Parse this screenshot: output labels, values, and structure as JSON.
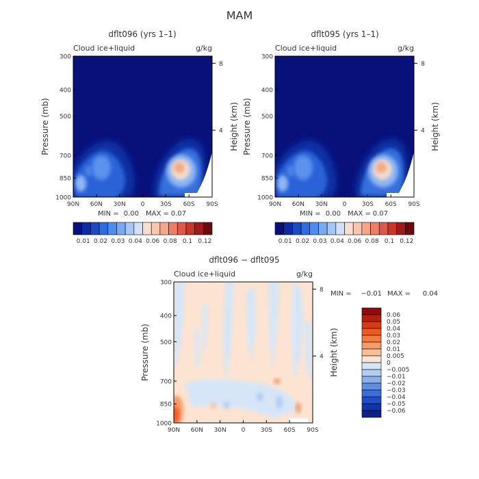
{
  "page_title": "MAM",
  "chart_data": [
    {
      "type": "heatmap",
      "title": "dflt096 (yrs 1–1)",
      "variable_label": "Cloud ice+liquid",
      "units_label": "g/kg",
      "ylabel": "Pressure (mb)",
      "ylabel_right": "Height (km)",
      "x_ticks": [
        "90N",
        "60N",
        "30N",
        "0",
        "30S",
        "60S",
        "90S"
      ],
      "y_ticks": [
        "300",
        "400",
        "500",
        "700",
        "850",
        "1000"
      ],
      "y_right_ticks": [
        "8",
        "4"
      ],
      "ylim": [
        1000,
        300
      ],
      "log_pressure_axis": true,
      "stats": {
        "min_label": "MIN =",
        "min": "0.00",
        "max_label": "MAX =",
        "max": "0.07"
      },
      "colorbar_labels": [
        "0.01",
        "0.02",
        "0.03",
        "0.04",
        "0.06",
        "0.08",
        "0.1",
        "0.12"
      ],
      "colors": [
        "#08107a",
        "#0b2aa3",
        "#1a4bc4",
        "#2f6be0",
        "#4f8cf0",
        "#78a9f5",
        "#a5c6f7",
        "#cfe0f8",
        "#f7e0d0",
        "#f9c6ae",
        "#f5a68a",
        "#ec7f66",
        "#de5946",
        "#c7352b",
        "#9f1a1a",
        "#6a0a0a"
      ],
      "features": [
        {
          "name": "NH low-level maximum",
          "lat": [
            -85,
            -30
          ],
          "pressure_top": 750,
          "peak_value": 0.035
        },
        {
          "name": "SH storm-track maximum",
          "lat": [
            25,
            70
          ],
          "pressure_top": 690,
          "peak_value": 0.07,
          "peak_lat": 52,
          "peak_pressure": 850
        }
      ]
    },
    {
      "type": "heatmap",
      "title": "dflt095 (yrs 1–1)",
      "variable_label": "Cloud ice+liquid",
      "units_label": "g/kg",
      "ylabel": "Pressure (mb)",
      "ylabel_right": "Height (km)",
      "x_ticks": [
        "90N",
        "60N",
        "30N",
        "0",
        "30S",
        "60S",
        "90S"
      ],
      "y_ticks": [
        "300",
        "400",
        "500",
        "700",
        "850",
        "1000"
      ],
      "y_right_ticks": [
        "8",
        "4"
      ],
      "ylim": [
        1000,
        300
      ],
      "log_pressure_axis": true,
      "stats": {
        "min_label": "MIN =",
        "min": "0.00",
        "max_label": "MAX =",
        "max": "0.07"
      },
      "colorbar_labels": [
        "0.01",
        "0.02",
        "0.03",
        "0.04",
        "0.06",
        "0.08",
        "0.1",
        "0.12"
      ],
      "colors": [
        "#08107a",
        "#0b2aa3",
        "#1a4bc4",
        "#2f6be0",
        "#4f8cf0",
        "#78a9f5",
        "#a5c6f7",
        "#cfe0f8",
        "#f7e0d0",
        "#f9c6ae",
        "#f5a68a",
        "#ec7f66",
        "#de5946",
        "#c7352b",
        "#9f1a1a",
        "#6a0a0a"
      ],
      "features": [
        {
          "name": "NH low-level maximum",
          "lat": [
            -85,
            -30
          ],
          "pressure_top": 750,
          "peak_value": 0.035
        },
        {
          "name": "SH storm-track maximum",
          "lat": [
            25,
            70
          ],
          "pressure_top": 690,
          "peak_value": 0.07,
          "peak_lat": 52,
          "peak_pressure": 850
        }
      ]
    },
    {
      "type": "heatmap",
      "title": "dflt096 − dflt095",
      "variable_label": "Cloud ice+liquid",
      "units_label": "g/kg",
      "ylabel": "Pressure (mb)",
      "ylabel_right": "Height (km)",
      "x_ticks": [
        "90N",
        "60N",
        "30N",
        "0",
        "30S",
        "60S",
        "90S"
      ],
      "y_ticks": [
        "300",
        "400",
        "500",
        "700",
        "850",
        "1000"
      ],
      "y_right_ticks": [
        "8",
        "4"
      ],
      "ylim": [
        1000,
        300
      ],
      "log_pressure_axis": true,
      "stats": {
        "min_label": "MIN =",
        "min": "−0.01",
        "max_label": "MAX =",
        "max": "0.04"
      },
      "colorbar_labels": [
        "0.06",
        "0.05",
        "0.04",
        "0.03",
        "0.02",
        "0.01",
        "0.005",
        "0",
        "−0.005",
        "−0.01",
        "−0.02",
        "−0.03",
        "−0.04",
        "−0.05",
        "−0.06"
      ],
      "colors": [
        "#8b0d0d",
        "#b3200f",
        "#d63a14",
        "#ee5a20",
        "#f47a3e",
        "#f89a66",
        "#fbbf98",
        "#fde4d2",
        "#d6e6f8",
        "#b2cdf2",
        "#8cb0ec",
        "#5f8ee2",
        "#3a6ed8",
        "#1f4fc6",
        "#0f35a8",
        "#082286"
      ],
      "features": [
        {
          "name": "background",
          "value": 0.002
        },
        {
          "name": "NH surface positive",
          "lat": -88,
          "pressure": 950,
          "value": 0.03
        }
      ]
    }
  ]
}
